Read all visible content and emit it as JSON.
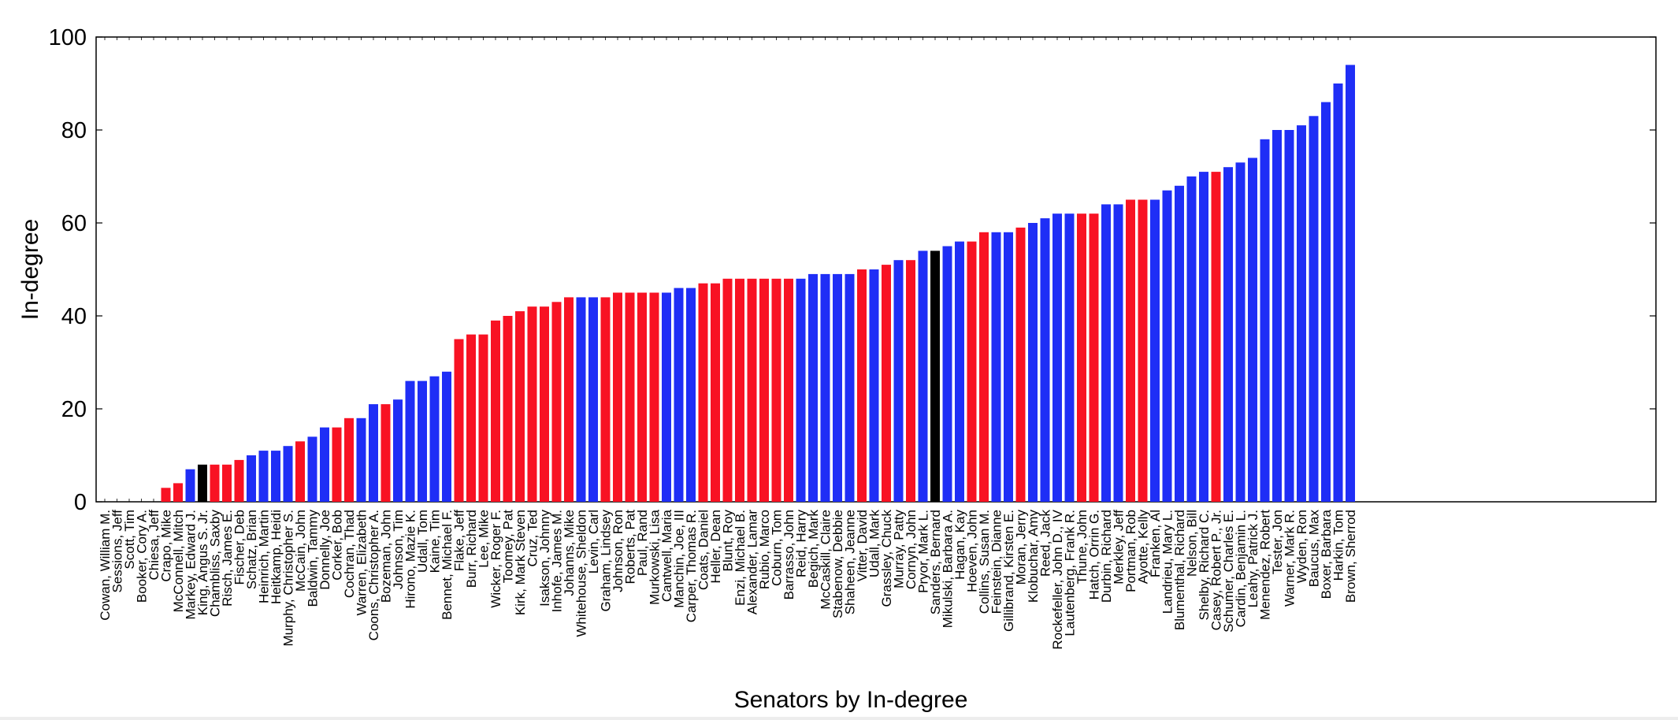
{
  "chart_data": {
    "type": "bar",
    "title": "",
    "xlabel": "Senators by In-degree",
    "ylabel": "In-degree",
    "ylim": [
      0,
      100
    ],
    "yticks": [
      "0",
      "20",
      "40",
      "60",
      "80",
      "100"
    ],
    "grid": false,
    "legend": "none",
    "colors": {
      "D": "#1f2ef6",
      "R": "#f81223",
      "I": "#000000"
    },
    "categories": [
      "Cowan, William M.",
      "Sessions, Jeff",
      "Scott, Tim",
      "Booker, Cory A.",
      "Chiesa, Jeff",
      "Crapo, Mike",
      "McConnell, Mitch",
      "Markey, Edward J.",
      "King, Angus S. Jr.",
      "Chambliss, Saxby",
      "Risch, James E.",
      "Fischer, Deb",
      "Schatz, Brian",
      "Heinrich, Martin",
      "Heitkamp, Heidi",
      "Murphy, Christopher S.",
      "McCain, John",
      "Baldwin, Tammy",
      "Donnelly, Joe",
      "Corker, Bob",
      "Cochran, Thad",
      "Warren, Elizabeth",
      "Coons, Christopher A.",
      "Bozeman, John",
      "Johnson, Tim",
      "Hirono, Mazie K.",
      "Udall, Tom",
      "Kaine, Tim",
      "Bennet, Michael F.",
      "Flake, Jeff",
      "Burr, Richard",
      "Lee, Mike",
      "Wicker, Roger F.",
      "Toomey, Pat",
      "Kirk, Mark Steven",
      "Cruz, Ted",
      "Isakson, Johnny",
      "Inhofe, James M.",
      "Johanns, Mike",
      "Whitehouse, Sheldon",
      "Levin, Carl",
      "Graham, Lindsey",
      "Johnson, Ron",
      "Roberts, Pat",
      "Paul, Rand",
      "Murkowski, Lisa",
      "Cantwell, Maria",
      "Manchin, Joe, III",
      "Carper, Thomas R.",
      "Coats, Daniel",
      "Heller, Dean",
      "Blunt, Roy",
      "Enzi, Michael B.",
      "Alexander, Lamar",
      "Rubio, Marco",
      "Coburn, Tom",
      "Barrasso, John",
      "Reid, Harry",
      "Begich, Mark",
      "McCaskill, Claire",
      "Stabenow, Debbie",
      "Shaheen, Jeanne",
      "Vitter, David",
      "Udall, Mark",
      "Grassley, Chuck",
      "Murray, Patty",
      "Cornyn, John",
      "Pryor, Mark L.",
      "Sanders, Bernard",
      "Mikulski, Barbara A.",
      "Hagan, Kay",
      "Hoeven, John",
      "Collins, Susan M.",
      "Feinstein, Dianne",
      "Gillibrand, Kirsten E.",
      "Moran, Jerry",
      "Klobuchar, Amy",
      "Reed, Jack",
      "Rockefeller, John D., IV",
      "Lautenberg, Frank R.",
      "Thune, John",
      "Hatch, Orrin G.",
      "Durbin, Richard",
      "Merkley, Jeff",
      "Portman, Rob",
      "Ayotte, Kelly",
      "Franken, Al",
      "Landrieu, Mary L.",
      "Blumenthal, Richard",
      "Nelson, Bill",
      "Shelby, Richard C.",
      "Casey, Robert P., Jr.",
      "Schumer, Charles E.",
      "Cardin, Benjamin L.",
      "Leahy, Patrick J.",
      "Menendez, Robert",
      "Tester, Jon",
      "Warner, Mark R.",
      "Wyden, Ron",
      "Baucus, Max",
      "Boxer, Barbara",
      "Harkin, Tom",
      "Brown, Sherrod"
    ],
    "values": [
      0,
      0,
      0,
      0,
      0,
      3,
      4,
      7,
      8,
      8,
      8,
      9,
      10,
      11,
      11,
      12,
      13,
      14,
      16,
      16,
      18,
      18,
      21,
      21,
      22,
      26,
      26,
      27,
      28,
      35,
      36,
      36,
      39,
      40,
      41,
      42,
      42,
      43,
      44,
      44,
      44,
      44,
      45,
      45,
      45,
      45,
      45,
      46,
      46,
      47,
      47,
      48,
      48,
      48,
      48,
      48,
      48,
      48,
      49,
      49,
      49,
      49,
      50,
      50,
      51,
      52,
      52,
      54,
      54,
      55,
      56,
      56,
      58,
      58,
      58,
      59,
      60,
      61,
      62,
      62,
      62,
      62,
      64,
      64,
      65,
      65,
      65,
      67,
      68,
      70,
      71,
      71,
      72,
      73,
      74,
      78,
      80,
      80,
      81,
      83,
      86,
      90,
      94
    ],
    "party": [
      "D",
      "R",
      "R",
      "D",
      "R",
      "R",
      "R",
      "D",
      "I",
      "R",
      "R",
      "R",
      "D",
      "D",
      "D",
      "D",
      "R",
      "D",
      "D",
      "R",
      "R",
      "D",
      "D",
      "R",
      "D",
      "D",
      "D",
      "D",
      "D",
      "R",
      "R",
      "R",
      "R",
      "R",
      "R",
      "R",
      "R",
      "R",
      "R",
      "D",
      "D",
      "R",
      "R",
      "R",
      "R",
      "R",
      "D",
      "D",
      "D",
      "R",
      "R",
      "R",
      "R",
      "R",
      "R",
      "R",
      "R",
      "D",
      "D",
      "D",
      "D",
      "D",
      "R",
      "D",
      "R",
      "D",
      "R",
      "D",
      "I",
      "D",
      "D",
      "R",
      "R",
      "D",
      "D",
      "R",
      "D",
      "D",
      "D",
      "D",
      "R",
      "R",
      "D",
      "D",
      "R",
      "R",
      "D",
      "D",
      "D",
      "D",
      "D",
      "R",
      "D",
      "D",
      "D",
      "D",
      "D",
      "D",
      "D",
      "D",
      "D",
      "D",
      "D"
    ]
  }
}
